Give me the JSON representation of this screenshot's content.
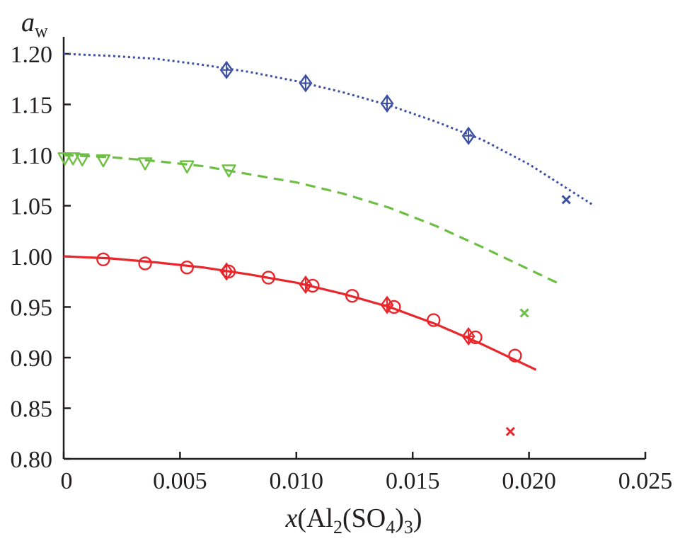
{
  "chart_data": {
    "type": "scatter",
    "title": "",
    "ylabel": {
      "main": "a",
      "sub": "w"
    },
    "xlabel": {
      "var": "x",
      "open": "(Al",
      "sub1": "2",
      "mid": "(SO",
      "sub2": "4",
      "close": ")",
      "sub3": "3",
      "end": ")"
    },
    "xlim": [
      0,
      0.025
    ],
    "ylim": [
      0.8,
      1.2
    ],
    "x_ticks": [
      {
        "value": 0,
        "label": "0"
      },
      {
        "value": 0.005,
        "label": "0.005"
      },
      {
        "value": 0.01,
        "label": "0.010"
      },
      {
        "value": 0.015,
        "label": "0.015"
      },
      {
        "value": 0.02,
        "label": "0.020"
      },
      {
        "value": 0.025,
        "label": "0.025"
      }
    ],
    "y_ticks": [
      {
        "value": 0.8,
        "label": "0.80"
      },
      {
        "value": 0.85,
        "label": "0.85"
      },
      {
        "value": 0.9,
        "label": "0.90"
      },
      {
        "value": 0.95,
        "label": "0.95"
      },
      {
        "value": 1.0,
        "label": "1.00"
      },
      {
        "value": 1.05,
        "label": "1.05"
      },
      {
        "value": 1.1,
        "label": "1.10"
      },
      {
        "value": 1.15,
        "label": "1.15"
      },
      {
        "value": 1.2,
        "label": "1.20"
      }
    ],
    "grid": false,
    "legend": "none",
    "colors": {
      "red": "#e8262b",
      "green": "#6dbf44",
      "blue": "#3c4fa3",
      "axis": "#231f20"
    },
    "curves": [
      {
        "color": "red",
        "style": "solid",
        "x": [
          0,
          0.002,
          0.004,
          0.006,
          0.008,
          0.01,
          0.012,
          0.014,
          0.016,
          0.018,
          0.0203
        ],
        "y": [
          1.0,
          0.998,
          0.994,
          0.989,
          0.982,
          0.974,
          0.963,
          0.95,
          0.933,
          0.913,
          0.888
        ]
      },
      {
        "color": "green",
        "style": "dashed",
        "x": [
          0,
          0.002,
          0.004,
          0.006,
          0.008,
          0.01,
          0.012,
          0.014,
          0.016,
          0.018,
          0.0212
        ],
        "y": [
          1.1,
          1.098,
          1.094,
          1.089,
          1.081,
          1.073,
          1.062,
          1.048,
          1.03,
          1.009,
          0.974
        ]
      },
      {
        "color": "blue",
        "style": "dotted",
        "x": [
          0,
          0.002,
          0.004,
          0.006,
          0.008,
          0.01,
          0.012,
          0.014,
          0.016,
          0.018,
          0.02,
          0.0228
        ],
        "y": [
          1.2,
          1.198,
          1.195,
          1.189,
          1.182,
          1.173,
          1.162,
          1.149,
          1.133,
          1.115,
          1.091,
          1.05
        ]
      }
    ],
    "markers": [
      {
        "shape": "circle",
        "color": "red",
        "x": [
          0.0017,
          0.0035,
          0.0053,
          0.0071,
          0.0088,
          0.0107,
          0.0124,
          0.0142,
          0.0159,
          0.0177,
          0.0194
        ],
        "y": [
          0.997,
          0.993,
          0.989,
          0.985,
          0.979,
          0.971,
          0.961,
          0.95,
          0.937,
          0.92,
          0.902
        ]
      },
      {
        "shape": "diamond",
        "color": "red",
        "x": [
          0.007,
          0.0104,
          0.0139,
          0.0174
        ],
        "y": [
          0.985,
          0.972,
          0.952,
          0.921
        ]
      },
      {
        "shape": "cross",
        "color": "red",
        "x": [
          0.0192
        ],
        "y": [
          0.827
        ]
      },
      {
        "shape": "triangle-down",
        "color": "green",
        "x": [
          5e-05,
          0.0004,
          0.0008,
          0.0017,
          0.0035,
          0.0053,
          0.0071
        ],
        "y": [
          1.097,
          1.097,
          1.096,
          1.095,
          1.092,
          1.089,
          1.085
        ]
      },
      {
        "shape": "cross",
        "color": "green",
        "x": [
          0.0198
        ],
        "y": [
          0.944
        ]
      },
      {
        "shape": "diamond",
        "color": "blue",
        "x": [
          0.007,
          0.0104,
          0.0139,
          0.0174
        ],
        "y": [
          1.184,
          1.171,
          1.151,
          1.119
        ]
      },
      {
        "shape": "cross",
        "color": "blue",
        "x": [
          0.0216
        ],
        "y": [
          1.056
        ]
      }
    ]
  }
}
